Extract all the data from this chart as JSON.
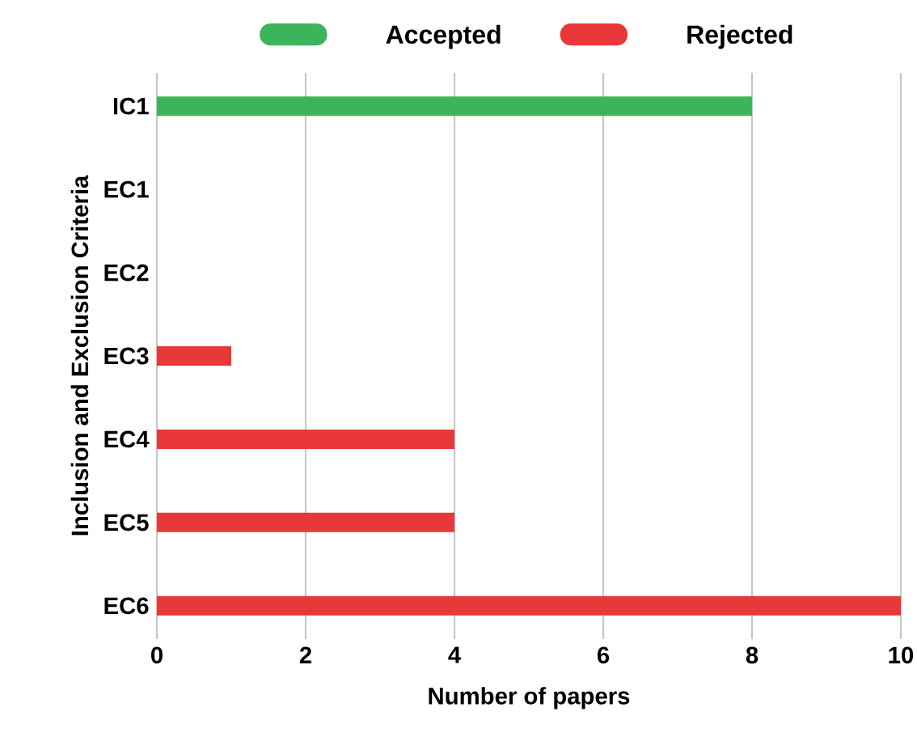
{
  "chart_data": {
    "type": "bar",
    "orientation": "horizontal",
    "xlabel": "Number of papers",
    "ylabel": "Inclusion and Exclusion Criteria",
    "categories": [
      "IC1",
      "EC1",
      "EC2",
      "EC3",
      "EC4",
      "EC5",
      "EC6"
    ],
    "series": [
      {
        "name": "Accepted",
        "color": "#3cb55a",
        "values": [
          8,
          null,
          null,
          null,
          null,
          null,
          null
        ]
      },
      {
        "name": "Rejected",
        "color": "#e8383a",
        "values": [
          null,
          null,
          null,
          1,
          4,
          4,
          10
        ]
      }
    ],
    "xlim": [
      0,
      10
    ],
    "xticks": [
      0,
      2,
      4,
      6,
      8,
      10
    ],
    "grid": "x",
    "legend": "top"
  }
}
